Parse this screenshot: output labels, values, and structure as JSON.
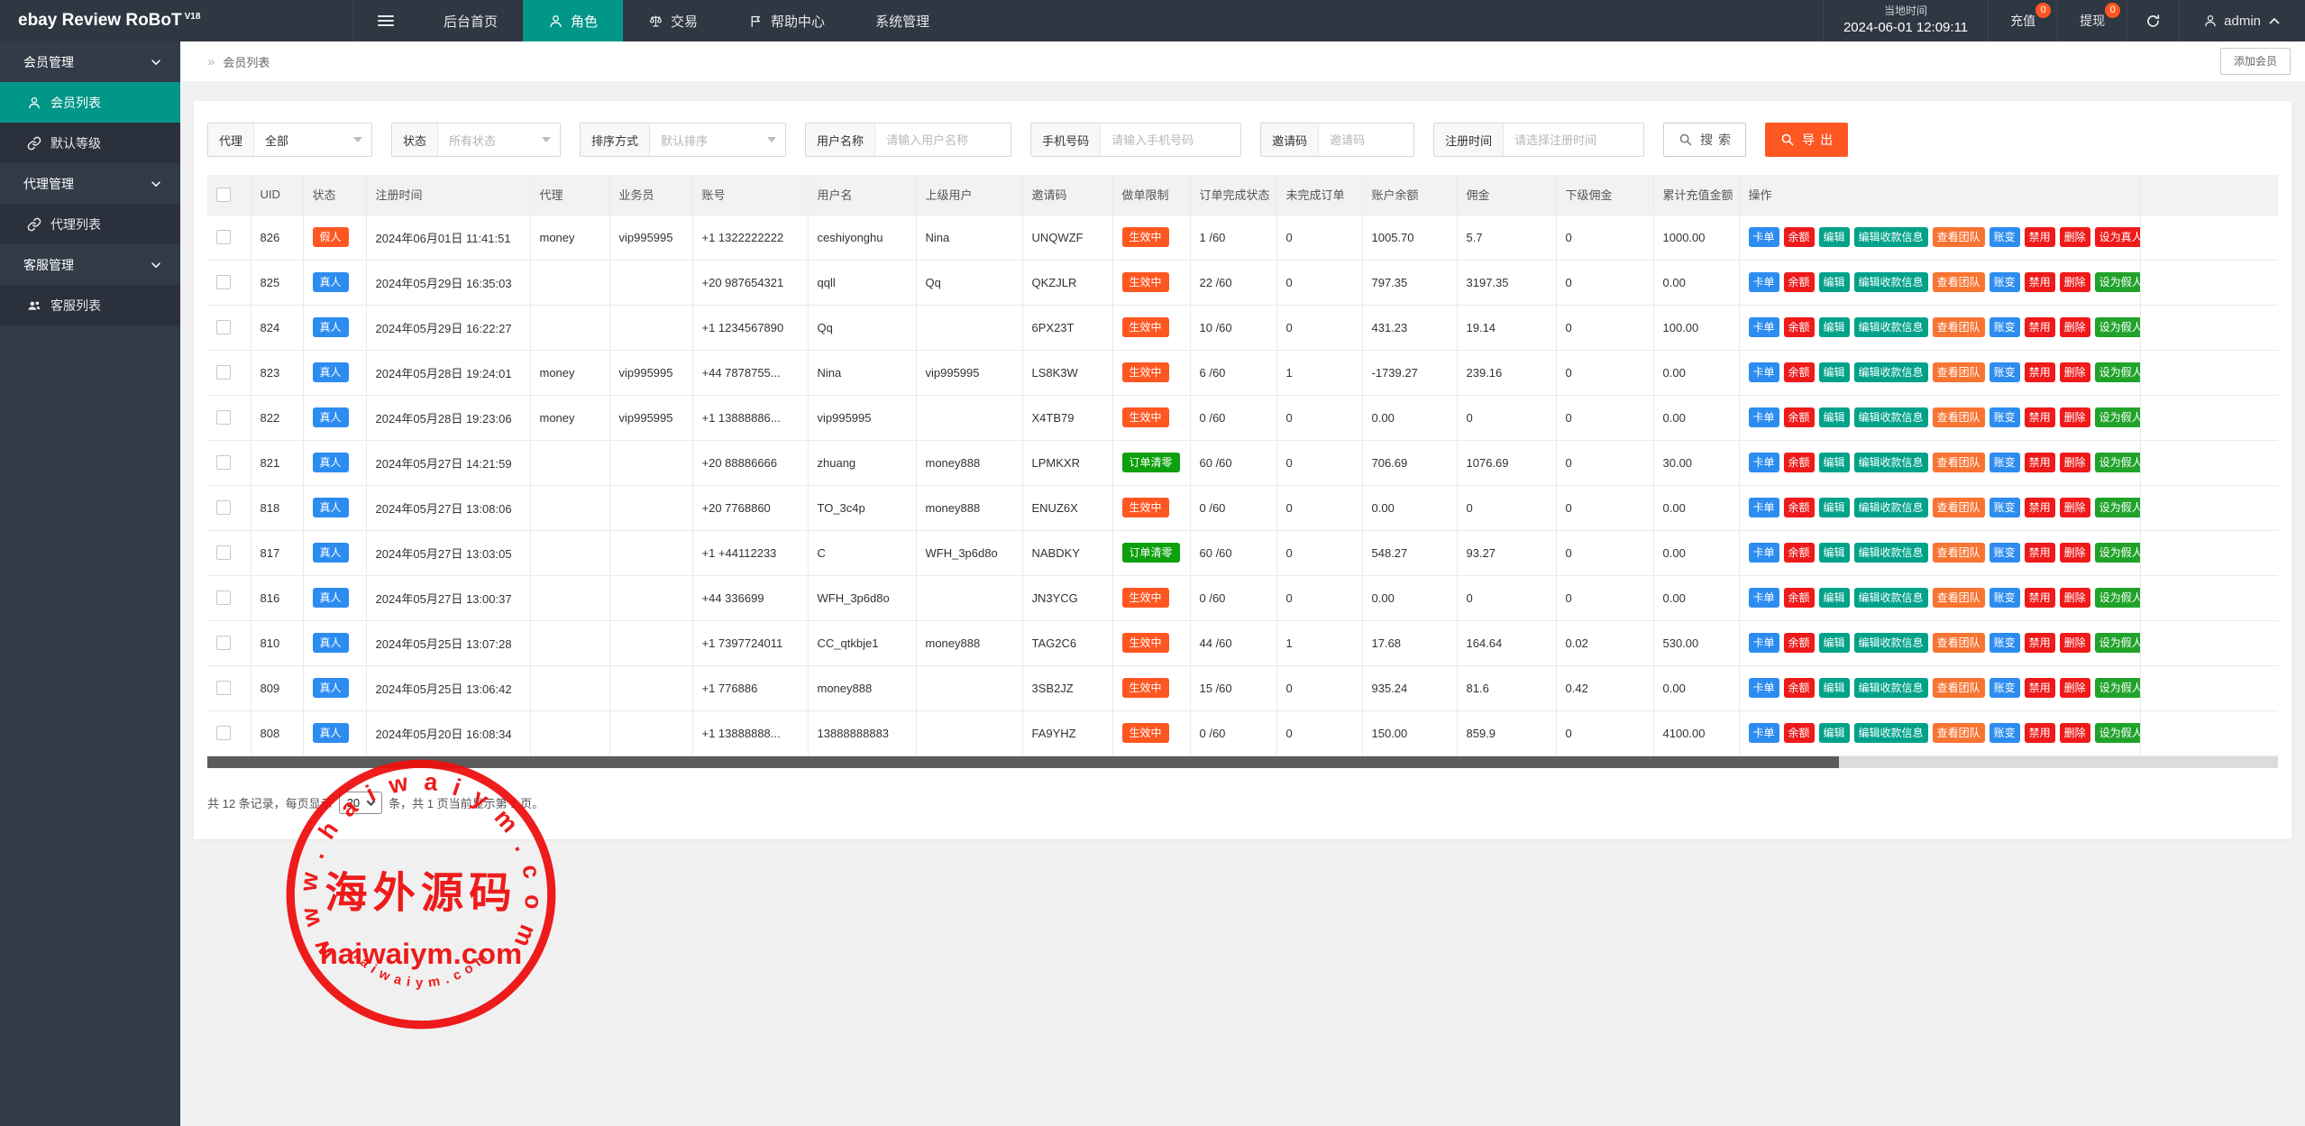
{
  "colors": {
    "page_bg": "#f0f0f0",
    "topbar_bg": "#2f3742",
    "sidebar_bg": "#323b47",
    "sidebar_item_bg": "#2a313c",
    "accent": "#009688",
    "orange": "#ff5722",
    "blue": "#2d8cf0",
    "red": "#ef1a1a",
    "teal_btn": "#00a28a",
    "orange_btn": "#f87433",
    "green_btn": "#21a32b",
    "green_badge": "#0ca10c",
    "stamp_red": "#ee1010"
  },
  "topbar": {
    "logo": "ebay Review RoBoT",
    "logo_version": "V18",
    "nav": [
      {
        "label": "后台首页",
        "icon": null,
        "active": false
      },
      {
        "label": "角色",
        "icon": "person",
        "active": true
      },
      {
        "label": "交易",
        "icon": "scales",
        "active": false
      },
      {
        "label": "帮助中心",
        "icon": "flag",
        "active": false
      },
      {
        "label": "系统管理",
        "icon": null,
        "active": false
      }
    ],
    "local_time_label": "当地时间",
    "local_time_value": "2024-06-01 12:09:11",
    "recharge_label": "充值",
    "recharge_badge": "0",
    "withdraw_label": "提现",
    "withdraw_badge": "0",
    "username": "admin"
  },
  "sidebar": {
    "entries": [
      {
        "type": "group",
        "label": "会员管理"
      },
      {
        "type": "item",
        "label": "会员列表",
        "icon": "person",
        "active": true
      },
      {
        "type": "item",
        "label": "默认等级",
        "icon": "link",
        "active": false
      },
      {
        "type": "group",
        "label": "代理管理"
      },
      {
        "type": "item",
        "label": "代理列表",
        "icon": "link",
        "active": false
      },
      {
        "type": "group",
        "label": "客服管理"
      },
      {
        "type": "item",
        "label": "客服列表",
        "icon": "people",
        "active": false
      }
    ]
  },
  "breadcrumb": {
    "separator": "»",
    "label": "会员列表",
    "add_button": "添加会员"
  },
  "filters": {
    "groups": [
      {
        "label": "代理",
        "type": "select",
        "value": "全部",
        "is_placeholder": false
      },
      {
        "label": "状态",
        "type": "select",
        "value": "所有状态",
        "is_placeholder": true
      },
      {
        "label": "排序方式",
        "type": "select",
        "value": "默认排序",
        "is_placeholder": true
      },
      {
        "label": "用户名称",
        "type": "input",
        "placeholder": "请输入用户名称"
      },
      {
        "label": "手机号码",
        "type": "input",
        "placeholder": "请输入手机号码"
      },
      {
        "label": "邀请码",
        "type": "input",
        "placeholder": "邀请码"
      },
      {
        "label": "注册时间",
        "type": "input",
        "placeholder": "请选择注册时间"
      }
    ],
    "search_label": "搜索",
    "export_label": "导出"
  },
  "table": {
    "columns": [
      "",
      "UID",
      "状态",
      "注册时间",
      "代理",
      "业务员",
      "账号",
      "用户名",
      "上级用户",
      "邀请码",
      "做单限制",
      "订单完成状态",
      "未完成订单",
      "账户余额",
      "佣金",
      "下级佣金",
      "累计充值金额",
      "操作"
    ],
    "action_buttons": [
      {
        "label": "卡单",
        "color": "blue",
        "name": "card-order-button"
      },
      {
        "label": "余额",
        "color": "red",
        "name": "balance-button"
      },
      {
        "label": "编辑",
        "color": "teal",
        "name": "edit-button"
      },
      {
        "label": "编辑收款信息",
        "color": "teal",
        "name": "edit-payment-info-button"
      },
      {
        "label": "查看团队",
        "color": "orange",
        "name": "view-team-button"
      },
      {
        "label": "账变",
        "color": "blue",
        "name": "account-change-button"
      },
      {
        "label": "禁用",
        "color": "red",
        "name": "disable-button"
      },
      {
        "label": "删除",
        "color": "red",
        "name": "delete-button"
      }
    ],
    "rows": [
      {
        "uid": "826",
        "status": "假人",
        "status_color": "orange",
        "reg_time": "2024年06月01日 11:41:51",
        "agent": "money",
        "salesman": "vip995995",
        "account": "+1 1322222222",
        "username": "ceshiyonghu",
        "parent": "Nina",
        "invite_code": "UNQWZF",
        "limit": "生效中",
        "limit_color": "orange",
        "orders": "1 /60",
        "unfinished": "0",
        "balance": "1005.70",
        "commission": "5.7",
        "sub_commission": "0",
        "total_recharge": "1000.00",
        "set_action": {
          "label": "设为真人",
          "color": "red",
          "name": "set-real-button"
        }
      },
      {
        "uid": "825",
        "status": "真人",
        "status_color": "blue",
        "reg_time": "2024年05月29日 16:35:03",
        "agent": "",
        "salesman": "",
        "account": "+20 987654321",
        "username": "qqll",
        "parent": "Qq",
        "invite_code": "QKZJLR",
        "limit": "生效中",
        "limit_color": "orange",
        "orders": "22 /60",
        "unfinished": "0",
        "balance": "797.35",
        "commission": "3197.35",
        "sub_commission": "0",
        "total_recharge": "0.00",
        "set_action": {
          "label": "设为假人",
          "color": "green",
          "name": "set-fake-button"
        }
      },
      {
        "uid": "824",
        "status": "真人",
        "status_color": "blue",
        "reg_time": "2024年05月29日 16:22:27",
        "agent": "",
        "salesman": "",
        "account": "+1 1234567890",
        "username": "Qq",
        "parent": "",
        "invite_code": "6PX23T",
        "limit": "生效中",
        "limit_color": "orange",
        "orders": "10 /60",
        "unfinished": "0",
        "balance": "431.23",
        "commission": "19.14",
        "sub_commission": "0",
        "total_recharge": "100.00",
        "set_action": {
          "label": "设为假人",
          "color": "green",
          "name": "set-fake-button"
        }
      },
      {
        "uid": "823",
        "status": "真人",
        "status_color": "blue",
        "reg_time": "2024年05月28日 19:24:01",
        "agent": "money",
        "salesman": "vip995995",
        "account": "+44 7878755...",
        "username": "Nina",
        "parent": "vip995995",
        "invite_code": "LS8K3W",
        "limit": "生效中",
        "limit_color": "orange",
        "orders": "6 /60",
        "unfinished": "1",
        "balance": "-1739.27",
        "commission": "239.16",
        "sub_commission": "0",
        "total_recharge": "0.00",
        "set_action": {
          "label": "设为假人",
          "color": "green",
          "name": "set-fake-button"
        }
      },
      {
        "uid": "822",
        "status": "真人",
        "status_color": "blue",
        "reg_time": "2024年05月28日 19:23:06",
        "agent": "money",
        "salesman": "vip995995",
        "account": "+1 13888886...",
        "username": "vip995995",
        "parent": "",
        "invite_code": "X4TB79",
        "limit": "生效中",
        "limit_color": "orange",
        "orders": "0 /60",
        "unfinished": "0",
        "balance": "0.00",
        "commission": "0",
        "sub_commission": "0",
        "total_recharge": "0.00",
        "set_action": {
          "label": "设为假人",
          "color": "green",
          "name": "set-fake-button"
        }
      },
      {
        "uid": "821",
        "status": "真人",
        "status_color": "blue",
        "reg_time": "2024年05月27日 14:21:59",
        "agent": "",
        "salesman": "",
        "account": "+20 88886666",
        "username": "zhuang",
        "parent": "money888",
        "invite_code": "LPMKXR",
        "limit": "订单清零",
        "limit_color": "green",
        "orders": "60 /60",
        "unfinished": "0",
        "balance": "706.69",
        "commission": "1076.69",
        "sub_commission": "0",
        "total_recharge": "30.00",
        "set_action": {
          "label": "设为假人",
          "color": "green",
          "name": "set-fake-button"
        }
      },
      {
        "uid": "818",
        "status": "真人",
        "status_color": "blue",
        "reg_time": "2024年05月27日 13:08:06",
        "agent": "",
        "salesman": "",
        "account": "+20 7768860",
        "username": "TO_3c4p",
        "parent": "money888",
        "invite_code": "ENUZ6X",
        "limit": "生效中",
        "limit_color": "orange",
        "orders": "0 /60",
        "unfinished": "0",
        "balance": "0.00",
        "commission": "0",
        "sub_commission": "0",
        "total_recharge": "0.00",
        "set_action": {
          "label": "设为假人",
          "color": "green",
          "name": "set-fake-button"
        }
      },
      {
        "uid": "817",
        "status": "真人",
        "status_color": "blue",
        "reg_time": "2024年05月27日 13:03:05",
        "agent": "",
        "salesman": "",
        "account": "+1 +44112233",
        "username": "C",
        "parent": "WFH_3p6d8o",
        "invite_code": "NABDKY",
        "limit": "订单清零",
        "limit_color": "green",
        "orders": "60 /60",
        "unfinished": "0",
        "balance": "548.27",
        "commission": "93.27",
        "sub_commission": "0",
        "total_recharge": "0.00",
        "set_action": {
          "label": "设为假人",
          "color": "green",
          "name": "set-fake-button"
        }
      },
      {
        "uid": "816",
        "status": "真人",
        "status_color": "blue",
        "reg_time": "2024年05月27日 13:00:37",
        "agent": "",
        "salesman": "",
        "account": "+44 336699",
        "username": "WFH_3p6d8o",
        "parent": "",
        "invite_code": "JN3YCG",
        "limit": "生效中",
        "limit_color": "orange",
        "orders": "0 /60",
        "unfinished": "0",
        "balance": "0.00",
        "commission": "0",
        "sub_commission": "0",
        "total_recharge": "0.00",
        "set_action": {
          "label": "设为假人",
          "color": "green",
          "name": "set-fake-button"
        }
      },
      {
        "uid": "810",
        "status": "真人",
        "status_color": "blue",
        "reg_time": "2024年05月25日 13:07:28",
        "agent": "",
        "salesman": "",
        "account": "+1 7397724011",
        "username": "CC_qtkbje1",
        "parent": "money888",
        "invite_code": "TAG2C6",
        "limit": "生效中",
        "limit_color": "orange",
        "orders": "44 /60",
        "unfinished": "1",
        "balance": "17.68",
        "commission": "164.64",
        "sub_commission": "0.02",
        "total_recharge": "530.00",
        "set_action": {
          "label": "设为假人",
          "color": "green",
          "name": "set-fake-button"
        }
      },
      {
        "uid": "809",
        "status": "真人",
        "status_color": "blue",
        "reg_time": "2024年05月25日 13:06:42",
        "agent": "",
        "salesman": "",
        "account": "+1 776886",
        "username": "money888",
        "parent": "",
        "invite_code": "3SB2JZ",
        "limit": "生效中",
        "limit_color": "orange",
        "orders": "15 /60",
        "unfinished": "0",
        "balance": "935.24",
        "commission": "81.6",
        "sub_commission": "0.42",
        "total_recharge": "0.00",
        "set_action": {
          "label": "设为假人",
          "color": "green",
          "name": "set-fake-button"
        }
      },
      {
        "uid": "808",
        "status": "真人",
        "status_color": "blue",
        "reg_time": "2024年05月20日 16:08:34",
        "agent": "",
        "salesman": "",
        "account": "+1 13888888...",
        "username": "13888888883",
        "parent": "",
        "invite_code": "FA9YHZ",
        "limit": "生效中",
        "limit_color": "orange",
        "orders": "0 /60",
        "unfinished": "0",
        "balance": "150.00",
        "commission": "859.9",
        "sub_commission": "0",
        "total_recharge": "4100.00",
        "set_action": {
          "label": "设为假人",
          "color": "green",
          "name": "set-fake-button"
        }
      }
    ]
  },
  "pagination": {
    "prefix": "共 12 条记录，每页显示",
    "page_size": "20",
    "suffix": "条，共 1 页当前显示第 1 页。"
  },
  "stamp": {
    "arc_top": "www.haiwaiym.com",
    "center_text": "海外源码",
    "domain_text": "haiwaiym.com",
    "arc_bottom": "haiwaiym.com"
  }
}
